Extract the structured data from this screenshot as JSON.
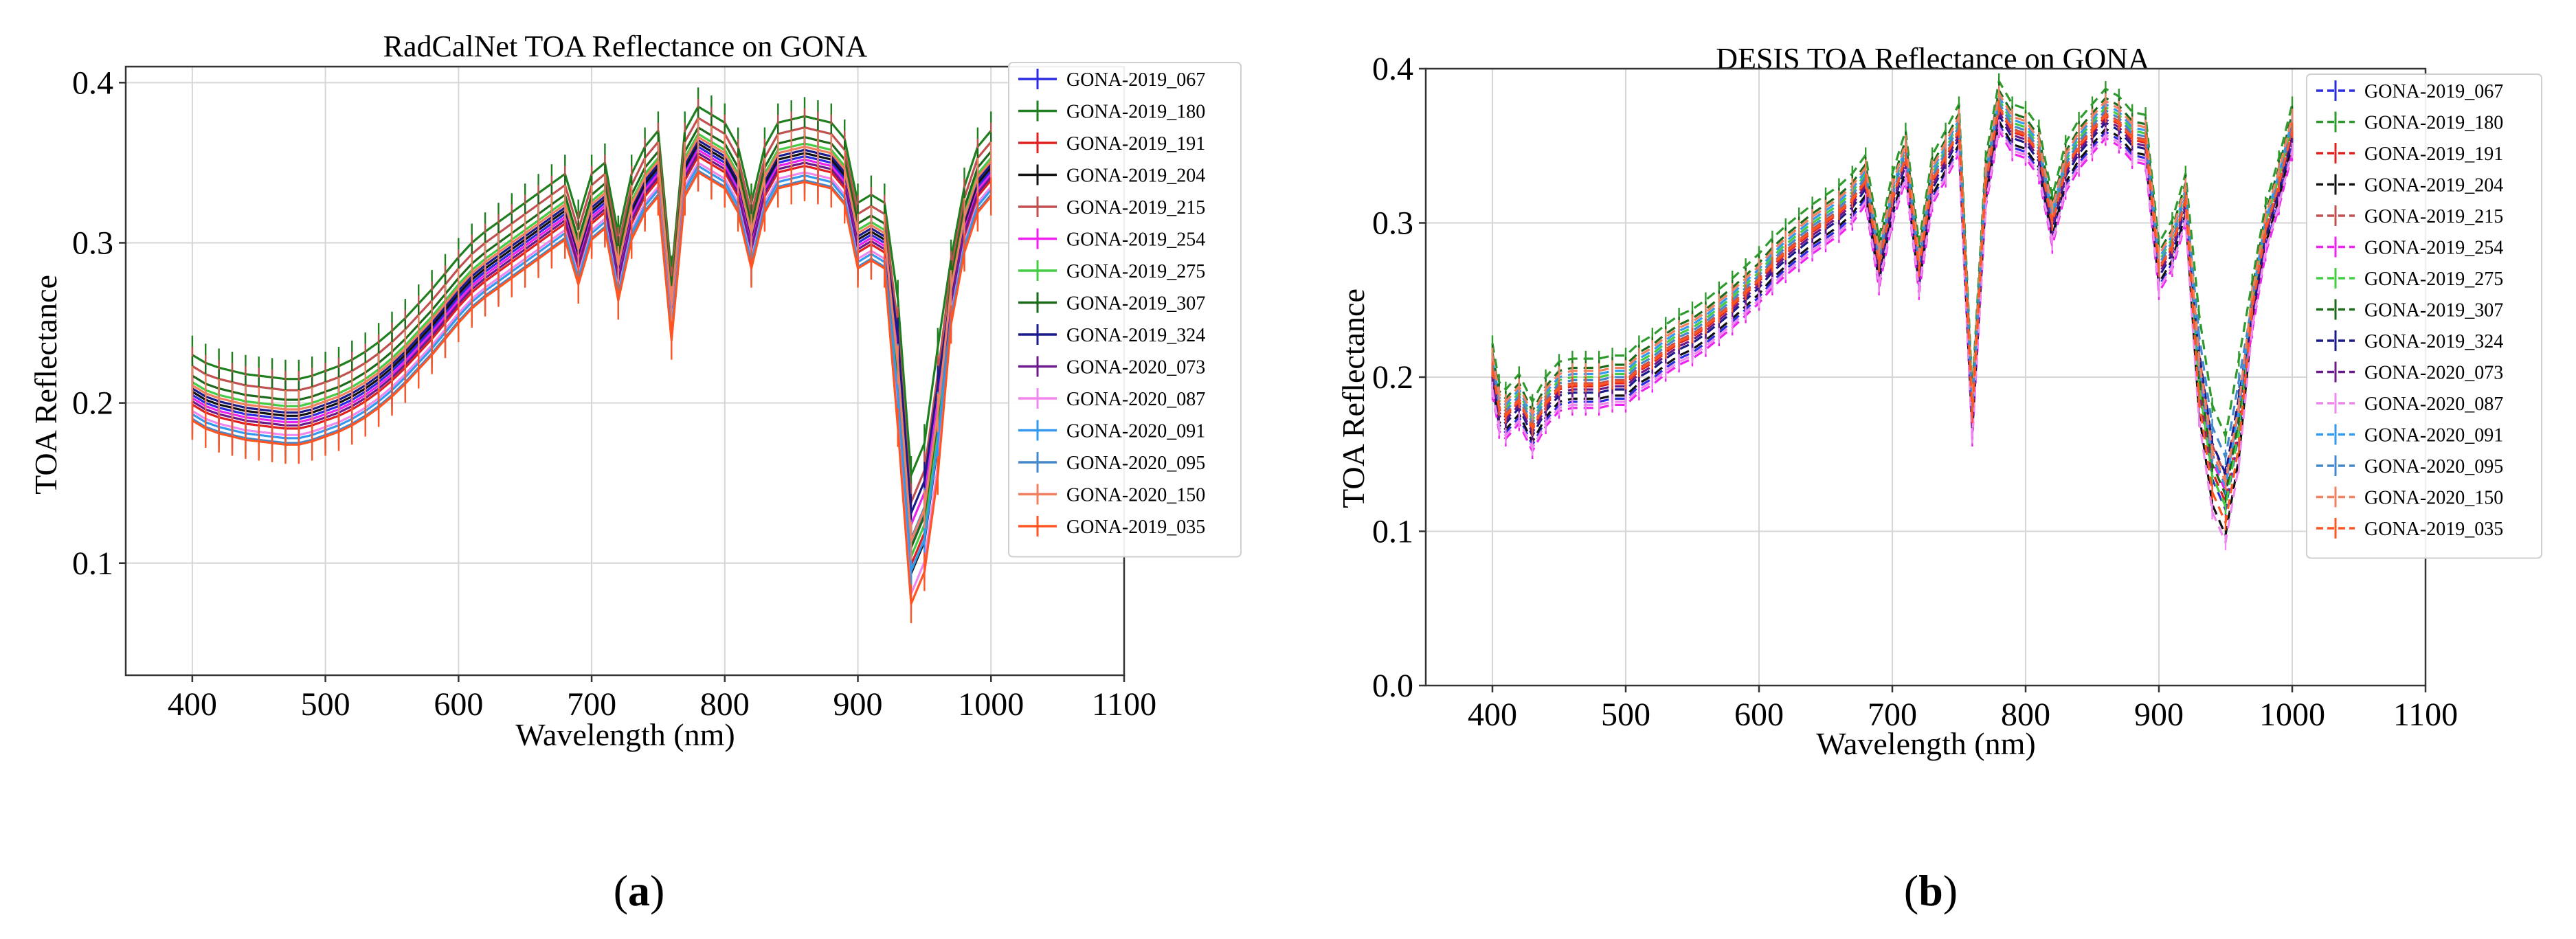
{
  "chart_data": [
    {
      "type": "line",
      "panel": "(a)",
      "panel_letter": "a",
      "title": "RadCalNet TOA Reflectance on GONA",
      "xlabel": "Wavelength (nm)",
      "ylabel": "TOA Reflectance",
      "xlim": [
        350,
        1100
      ],
      "ylim": [
        0.03,
        0.41
      ],
      "xticks": [
        400,
        500,
        600,
        700,
        800,
        900,
        1000,
        1100
      ],
      "yticks": [
        0.1,
        0.2,
        0.3,
        0.4
      ],
      "ytick_labels": [
        "0.1",
        "0.2",
        "0.3",
        "0.4"
      ],
      "linestyle": "solid",
      "error_bar": 0.012,
      "legend_position": "top-right",
      "x": [
        400,
        410,
        420,
        430,
        440,
        450,
        460,
        470,
        480,
        490,
        500,
        510,
        520,
        530,
        540,
        550,
        560,
        570,
        580,
        590,
        600,
        610,
        620,
        630,
        640,
        650,
        660,
        670,
        680,
        690,
        700,
        710,
        720,
        730,
        740,
        750,
        760,
        770,
        780,
        790,
        800,
        810,
        820,
        830,
        840,
        850,
        860,
        870,
        880,
        890,
        900,
        910,
        920,
        930,
        940,
        950,
        960,
        970,
        980,
        990,
        1000
      ],
      "base": [
        0.205,
        0.2,
        0.197,
        0.195,
        0.193,
        0.192,
        0.191,
        0.19,
        0.19,
        0.192,
        0.195,
        0.198,
        0.202,
        0.207,
        0.213,
        0.22,
        0.228,
        0.237,
        0.246,
        0.256,
        0.266,
        0.275,
        0.282,
        0.288,
        0.294,
        0.3,
        0.306,
        0.312,
        0.318,
        0.29,
        0.318,
        0.325,
        0.28,
        0.318,
        0.335,
        0.345,
        0.255,
        0.345,
        0.36,
        0.355,
        0.35,
        0.335,
        0.3,
        0.335,
        0.35,
        0.352,
        0.354,
        0.352,
        0.35,
        0.34,
        0.3,
        0.305,
        0.3,
        0.22,
        0.11,
        0.13,
        0.19,
        0.265,
        0.31,
        0.335,
        0.345
      ],
      "series": [
        {
          "name": "GONA-2019_067",
          "color": "#2b2be0",
          "offset": 0.0
        },
        {
          "name": "GONA-2019_180",
          "color": "#1e7f1e",
          "offset": 0.025
        },
        {
          "name": "GONA-2019_191",
          "color": "#e02020",
          "offset": -0.006
        },
        {
          "name": "GONA-2019_204",
          "color": "#111111",
          "offset": 0.002
        },
        {
          "name": "GONA-2019_215",
          "color": "#c05050",
          "offset": 0.018
        },
        {
          "name": "GONA-2019_254",
          "color": "#ee22ee",
          "offset": -0.002
        },
        {
          "name": "GONA-2019_275",
          "color": "#44cc44",
          "offset": 0.008
        },
        {
          "name": "GONA-2019_307",
          "color": "#1a6a1a",
          "offset": 0.012
        },
        {
          "name": "GONA-2019_324",
          "color": "#1a1a8a",
          "offset": 0.004
        },
        {
          "name": "GONA-2020_073",
          "color": "#6a1a8a",
          "offset": -0.004
        },
        {
          "name": "GONA-2020_087",
          "color": "#ee88ee",
          "offset": -0.01
        },
        {
          "name": "GONA-2020_091",
          "color": "#3399ee",
          "offset": -0.012
        },
        {
          "name": "GONA-2020_095",
          "color": "#4488cc",
          "offset": -0.015
        },
        {
          "name": "GONA-2020_150",
          "color": "#f08060",
          "offset": 0.006
        },
        {
          "name": "GONA-2019_035",
          "color": "#ff5522",
          "offset": -0.016
        }
      ]
    },
    {
      "type": "line",
      "panel": "(b)",
      "panel_letter": "b",
      "title": "DESIS TOA Reflectance on GONA",
      "xlabel": "Wavelength (nm)",
      "ylabel": "TOA Reflectance",
      "xlim": [
        350,
        1100
      ],
      "ylim": [
        0.0,
        0.4
      ],
      "xticks": [
        400,
        500,
        600,
        700,
        800,
        900,
        1000,
        1100
      ],
      "yticks": [
        0.0,
        0.1,
        0.2,
        0.3,
        0.4
      ],
      "ytick_labels": [
        "0.0",
        "0.1",
        "0.2",
        "0.3",
        "0.4"
      ],
      "linestyle": "dashed",
      "error_bar": 0.005,
      "legend_position": "top-right",
      "x": [
        400,
        405,
        410,
        420,
        430,
        440,
        450,
        460,
        470,
        480,
        490,
        500,
        510,
        520,
        530,
        540,
        550,
        560,
        570,
        580,
        590,
        600,
        610,
        620,
        630,
        640,
        650,
        660,
        670,
        680,
        690,
        700,
        710,
        720,
        730,
        740,
        750,
        760,
        770,
        780,
        790,
        800,
        810,
        820,
        830,
        840,
        850,
        860,
        870,
        880,
        890,
        900,
        910,
        920,
        930,
        940,
        950,
        960,
        970,
        980,
        990,
        1000
      ],
      "base": [
        0.2,
        0.175,
        0.17,
        0.18,
        0.162,
        0.178,
        0.188,
        0.19,
        0.19,
        0.19,
        0.192,
        0.192,
        0.2,
        0.205,
        0.212,
        0.218,
        0.222,
        0.228,
        0.235,
        0.242,
        0.25,
        0.258,
        0.268,
        0.276,
        0.283,
        0.29,
        0.296,
        0.302,
        0.31,
        0.322,
        0.268,
        0.31,
        0.338,
        0.265,
        0.322,
        0.338,
        0.355,
        0.17,
        0.32,
        0.37,
        0.355,
        0.352,
        0.34,
        0.295,
        0.33,
        0.345,
        0.355,
        0.365,
        0.36,
        0.35,
        0.348,
        0.265,
        0.28,
        0.31,
        0.2,
        0.14,
        0.12,
        0.17,
        0.24,
        0.29,
        0.32,
        0.355
      ],
      "series": [
        {
          "name": "GONA-2019_067",
          "color": "#2b2be0",
          "offset": -0.006
        },
        {
          "name": "GONA-2019_180",
          "color": "#2e9a2e",
          "offset": 0.022
        },
        {
          "name": "GONA-2019_191",
          "color": "#e02020",
          "offset": 0.004
        },
        {
          "name": "GONA-2019_204",
          "color": "#111111",
          "offset": -0.004
        },
        {
          "name": "GONA-2019_215",
          "color": "#c05050",
          "offset": 0.006
        },
        {
          "name": "GONA-2019_254",
          "color": "#ee22ee",
          "offset": -0.01
        },
        {
          "name": "GONA-2019_275",
          "color": "#44cc44",
          "offset": 0.01
        },
        {
          "name": "GONA-2019_307",
          "color": "#1a6a1a",
          "offset": 0.016
        },
        {
          "name": "GONA-2019_324",
          "color": "#1a1a8a",
          "offset": 0.0
        },
        {
          "name": "GONA-2020_073",
          "color": "#6a1a8a",
          "offset": 0.002
        },
        {
          "name": "GONA-2020_087",
          "color": "#ee88ee",
          "offset": -0.008
        },
        {
          "name": "GONA-2020_091",
          "color": "#3399ee",
          "offset": 0.012
        },
        {
          "name": "GONA-2020_095",
          "color": "#4488cc",
          "offset": 0.008
        },
        {
          "name": "GONA-2020_150",
          "color": "#f08060",
          "offset": 0.014
        },
        {
          "name": "GONA-2019_035",
          "color": "#ff5522",
          "offset": 0.005
        }
      ]
    }
  ]
}
